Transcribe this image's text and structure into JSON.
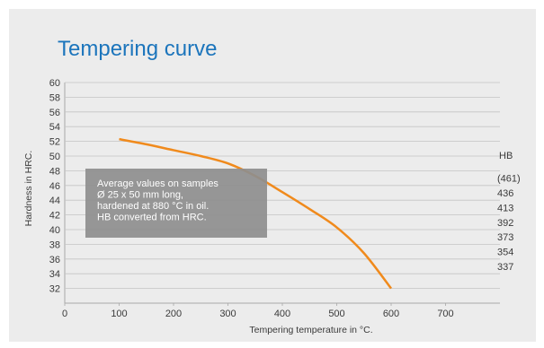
{
  "chart_data": {
    "type": "line",
    "title": "Tempering curve",
    "xlabel": "Tempering temperature in °C.",
    "ylabel": "Hardness in HRC.",
    "xlim": [
      0,
      800
    ],
    "ylim": [
      30,
      60
    ],
    "x_ticks": [
      {
        "value": 0,
        "label": "0"
      },
      {
        "value": 100,
        "label": "100"
      },
      {
        "value": 200,
        "label": "200"
      },
      {
        "value": 300,
        "label": "300"
      },
      {
        "value": 400,
        "label": "400"
      },
      {
        "value": 500,
        "label": "500"
      },
      {
        "value": 600,
        "label": "600"
      },
      {
        "value": 700,
        "label": "700"
      }
    ],
    "y_ticks": [
      32,
      34,
      36,
      38,
      40,
      42,
      44,
      46,
      48,
      50,
      52,
      54,
      56,
      58,
      60
    ],
    "grid": true,
    "series": [
      {
        "color": "#f08a1c",
        "x": [
          100,
          150,
          200,
          250,
          300,
          350,
          400,
          450,
          500,
          550,
          600
        ],
        "y": [
          52.3,
          51.6,
          50.8,
          50.0,
          49.0,
          47.3,
          45.1,
          42.8,
          40.3,
          36.8,
          32.0
        ]
      }
    ],
    "annotation": {
      "lines": [
        "Average values on samples",
        "Ø 25 x 50 mm long,",
        "hardened at 880 °C in oil.",
        "HB converted from HRC."
      ]
    },
    "secondary_axis": {
      "header": "HB",
      "labels": [
        {
          "hrc": 47,
          "text": "(461)"
        },
        {
          "hrc": 45,
          "text": "436"
        },
        {
          "hrc": 43,
          "text": "413"
        },
        {
          "hrc": 41,
          "text": "392"
        },
        {
          "hrc": 39,
          "text": "373"
        },
        {
          "hrc": 37,
          "text": "354"
        },
        {
          "hrc": 35,
          "text": "337"
        }
      ]
    },
    "colors": {
      "background": "#ececec",
      "title": "#1c75bc",
      "line": "#f08a1c",
      "note_box": "#8e8e8e"
    }
  }
}
